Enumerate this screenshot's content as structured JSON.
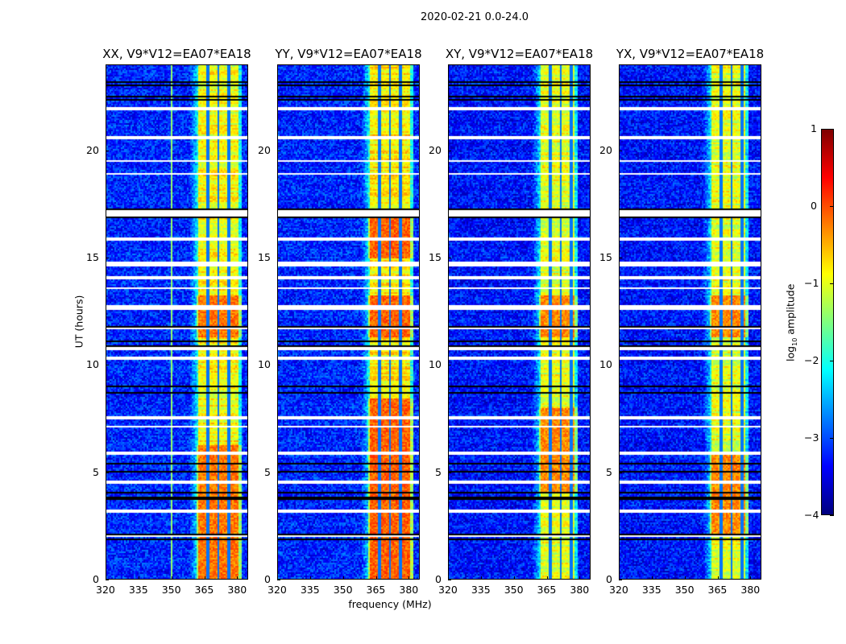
{
  "suptitle": "2020-02-21 0.0-24.0",
  "chart_data": [
    {
      "type": "heatmap",
      "title": "XX, V9*V12=EA07*EA18",
      "xlabel": "",
      "ylabel": "UT (hours)",
      "xlim": [
        320,
        385
      ],
      "ylim": [
        0,
        24
      ],
      "xticks": [
        320,
        335,
        350,
        365,
        380
      ],
      "yticks": [
        0,
        5,
        10,
        15,
        20
      ],
      "background_level": -3.2,
      "rfi_band": [
        361,
        382
      ],
      "band_level": -0.9,
      "channel_gaps": [
        366.5,
        371.3,
        376.2
      ],
      "spur_freq": 350,
      "hot_hours": [
        [
          11.3,
          13.3
        ],
        [
          0,
          6.3
        ]
      ],
      "hot_level": -0.2
    },
    {
      "type": "heatmap",
      "title": "YY, V9*V12=EA07*EA18",
      "xlabel": "frequency (MHz)",
      "ylabel": "",
      "xlim": [
        320,
        385
      ],
      "ylim": [
        0,
        24
      ],
      "xticks": [
        320,
        335,
        350,
        365,
        380
      ],
      "yticks": [
        0,
        5,
        10,
        15,
        20
      ],
      "background_level": -3.2,
      "rfi_band": [
        361,
        382
      ],
      "band_level": -0.8,
      "channel_gaps": [
        366.5,
        371.3,
        376.2
      ],
      "spur_freq": null,
      "hot_hours": [
        [
          11.3,
          13.3
        ],
        [
          0,
          8.5
        ],
        [
          15,
          17
        ]
      ],
      "hot_level": -0.1
    },
    {
      "type": "heatmap",
      "title": "XY, V9*V12=EA07*EA18",
      "xlabel": "",
      "ylabel": "",
      "xlim": [
        320,
        385
      ],
      "ylim": [
        0,
        24
      ],
      "xticks": [
        320,
        335,
        350,
        365,
        380
      ],
      "yticks": [
        0,
        5,
        10,
        15,
        20
      ],
      "background_level": -3.3,
      "rfi_band": [
        361,
        379
      ],
      "band_level": -1.0,
      "channel_gaps": [
        366.5,
        371.3,
        376.2
      ],
      "spur_freq": null,
      "hot_hours": [
        [
          11.3,
          13.3
        ],
        [
          4,
          8
        ]
      ],
      "hot_level": -0.3
    },
    {
      "type": "heatmap",
      "title": "YX, V9*V12=EA07*EA18",
      "xlabel": "",
      "ylabel": "",
      "xlim": [
        320,
        385
      ],
      "ylim": [
        0,
        24
      ],
      "xticks": [
        320,
        335,
        350,
        365,
        380
      ],
      "yticks": [
        0,
        5,
        10,
        15,
        20
      ],
      "background_level": -3.3,
      "rfi_band": [
        361,
        379
      ],
      "band_level": -1.0,
      "channel_gaps": [
        366.5,
        371.3,
        376.2
      ],
      "spur_freq": null,
      "hot_hours": [
        [
          11.3,
          13.3
        ],
        [
          2,
          6
        ]
      ],
      "hot_level": -0.3
    }
  ],
  "flagged_hours": [
    [
      21.9,
      22.05
    ],
    [
      20.6,
      20.7
    ],
    [
      19.5,
      19.6
    ],
    [
      18.9,
      19.0
    ],
    [
      17.0,
      17.25
    ],
    [
      15.85,
      15.95
    ],
    [
      14.6,
      14.85
    ],
    [
      14.05,
      14.15
    ],
    [
      13.55,
      13.65
    ],
    [
      12.6,
      12.8
    ],
    [
      11.7,
      11.8
    ],
    [
      10.75,
      10.85
    ],
    [
      10.3,
      10.4
    ],
    [
      7.5,
      7.6
    ],
    [
      7.1,
      7.2
    ],
    [
      5.8,
      6.0
    ],
    [
      4.5,
      4.6
    ],
    [
      3.1,
      3.3
    ],
    [
      2.0,
      2.1
    ]
  ],
  "dropout_hours": [
    23.25,
    23.1,
    22.6,
    22.4,
    17.3,
    16.9,
    14.85,
    11.8,
    11.1,
    10.9,
    9.0,
    8.7,
    5.4,
    5.05,
    4.05,
    3.8,
    2.1,
    1.9
  ],
  "colorbar": {
    "label_prefix": "log",
    "label_sub": "10",
    "label_suffix": " amplitude",
    "range": [
      -4,
      1
    ],
    "ticks": [
      1,
      0,
      -1,
      -2,
      -3,
      -4
    ],
    "tick_labels": [
      "1",
      "0",
      "−1",
      "−2",
      "−3",
      "−4"
    ],
    "colormap": "jet"
  }
}
